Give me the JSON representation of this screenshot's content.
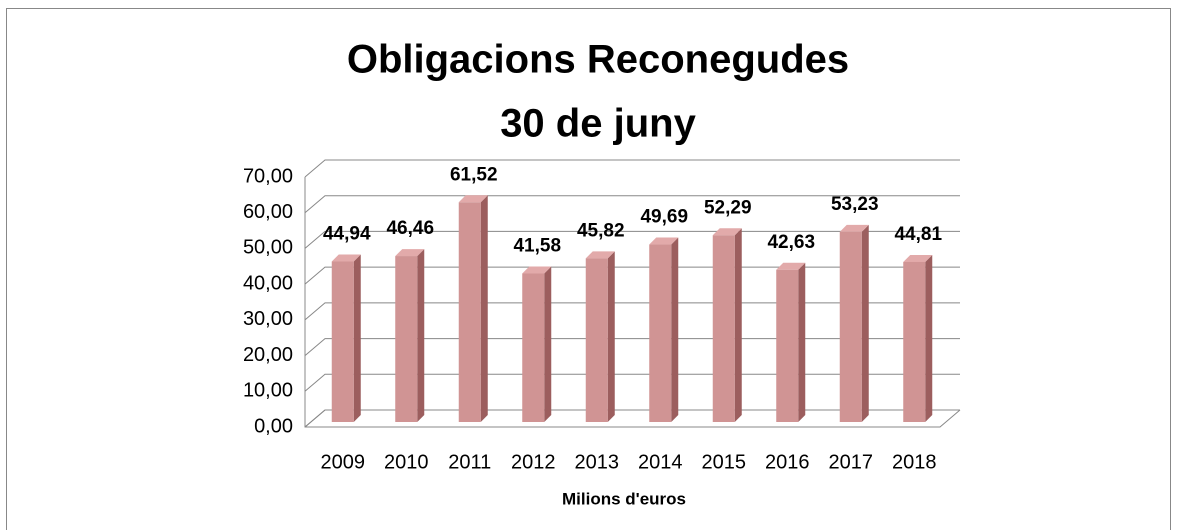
{
  "chart_data": {
    "type": "bar3d",
    "title": [
      "Obligacions Reconegudes",
      "30 de juny"
    ],
    "x_label": "Milions d'euros",
    "categories": [
      "2009",
      "2010",
      "2011",
      "2012",
      "2013",
      "2014",
      "2015",
      "2016",
      "2017",
      "2018"
    ],
    "values": [
      44.94,
      46.46,
      61.52,
      41.58,
      45.82,
      49.69,
      52.29,
      42.63,
      53.23,
      44.81
    ],
    "value_labels": [
      "44,94",
      "46,46",
      "61,52",
      "41,58",
      "45,82",
      "49,69",
      "52,29",
      "42,63",
      "53,23",
      "44,81"
    ],
    "color": "#d09494",
    "ylim": [
      0,
      70
    ],
    "yticks": [
      {
        "value": 0,
        "label": "0,00"
      },
      {
        "value": 10,
        "label": "10,00"
      },
      {
        "value": 20,
        "label": "20,00"
      },
      {
        "value": 30,
        "label": "30,00"
      },
      {
        "value": 40,
        "label": "40,00"
      },
      {
        "value": 50,
        "label": "50,00"
      },
      {
        "value": 60,
        "label": "60,00"
      },
      {
        "value": 70,
        "label": "70,00"
      }
    ],
    "grid": true
  }
}
